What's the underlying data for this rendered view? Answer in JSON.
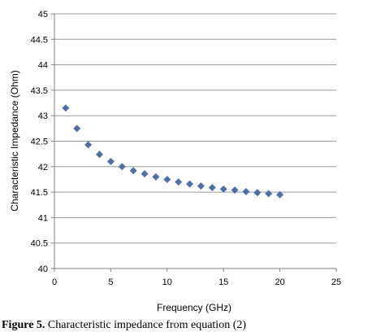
{
  "chart_data": {
    "type": "scatter",
    "xlabel": "Frequency (GHz)",
    "ylabel": "Characteristic Impedance (Ohm)",
    "xlim": [
      0,
      25
    ],
    "ylim": [
      40,
      45
    ],
    "xticks": [
      0,
      5,
      10,
      15,
      20,
      25
    ],
    "yticks": [
      40,
      40.5,
      41,
      41.5,
      42,
      42.5,
      43,
      43.5,
      44,
      44.5,
      45
    ],
    "grid": "horizontal",
    "marker": "diamond",
    "marker_color": "#4f6fa8",
    "series": [
      {
        "x": [
          1,
          2,
          3,
          4,
          5,
          6,
          7,
          8,
          9,
          10,
          11,
          12,
          13,
          14,
          15,
          16,
          17,
          18,
          19,
          20
        ],
        "y": [
          43.15,
          42.75,
          42.43,
          42.24,
          42.1,
          42.0,
          41.92,
          41.86,
          41.8,
          41.75,
          41.7,
          41.66,
          41.62,
          41.59,
          41.56,
          41.54,
          41.51,
          41.49,
          41.47,
          41.45
        ]
      }
    ]
  },
  "caption": {
    "label": "Figure 5.",
    "text": " Characteristic impedance from equation (2)"
  }
}
